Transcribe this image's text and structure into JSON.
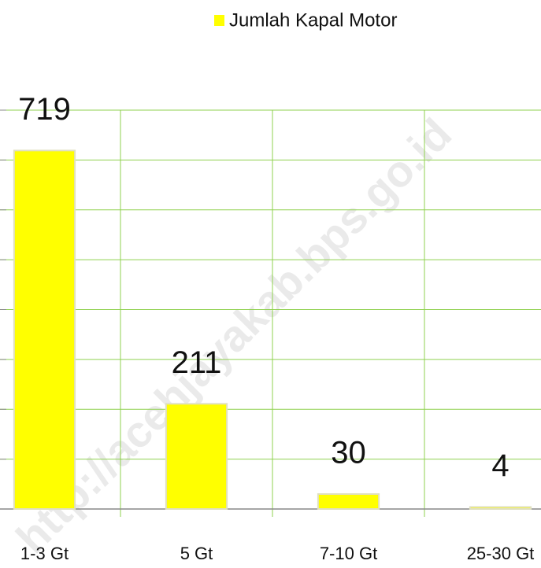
{
  "chart_data": {
    "type": "bar",
    "categories": [
      "1-3 Gt",
      "5 Gt",
      "7-10 Gt",
      "25-30 Gt"
    ],
    "series": [
      {
        "name": "Jumlah Kapal Motor",
        "color": "#ffff00",
        "values": [
          719,
          211,
          30,
          4
        ]
      }
    ],
    "ylim": [
      0,
      800
    ],
    "yticks": [
      0,
      100,
      200,
      300,
      400,
      500,
      600,
      700,
      800
    ],
    "grid": true,
    "legend": "top",
    "watermark": "http://acehjayakab.bps.go.id"
  }
}
